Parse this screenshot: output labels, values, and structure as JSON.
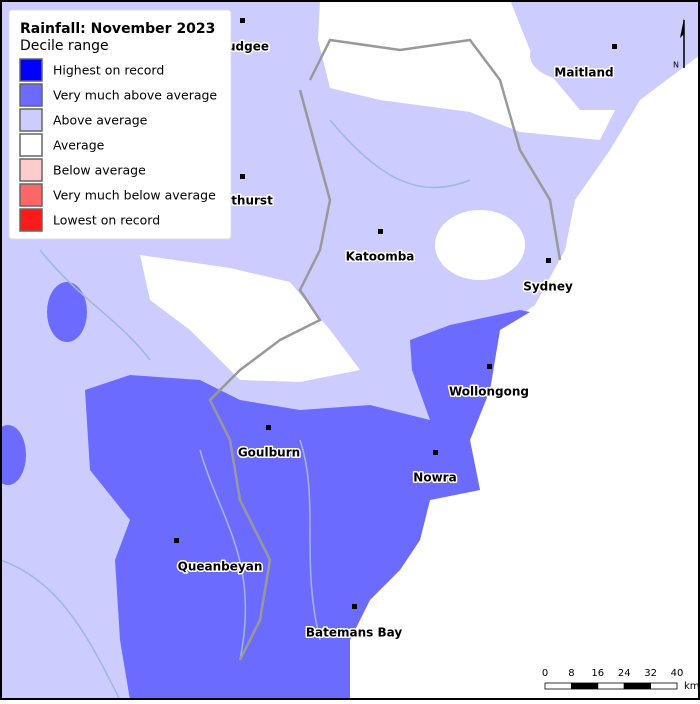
{
  "legend": {
    "title": "Rainfall: November 2023",
    "subtitle": "Decile range",
    "items": [
      {
        "label": "Highest on record",
        "color": "#0000ff"
      },
      {
        "label": "Very much above average",
        "color": "#6b6bff"
      },
      {
        "label": "Above average",
        "color": "#ccccff"
      },
      {
        "label": "Average",
        "color": "#ffffff"
      },
      {
        "label": "Below average",
        "color": "#ffcccc"
      },
      {
        "label": "Very much below average",
        "color": "#ff6666"
      },
      {
        "label": "Lowest on record",
        "color": "#ff1a1a"
      }
    ]
  },
  "places": [
    "udgee",
    "thurst",
    "Katoomba",
    "Sydney",
    "Maitland",
    "Wollongong",
    "Goulburn",
    "Nowra",
    "Queanbeyan",
    "Batemans Bay"
  ],
  "scale": {
    "ticks": [
      0,
      8,
      16,
      24,
      32,
      40
    ],
    "unit": "km"
  },
  "north": "N"
}
